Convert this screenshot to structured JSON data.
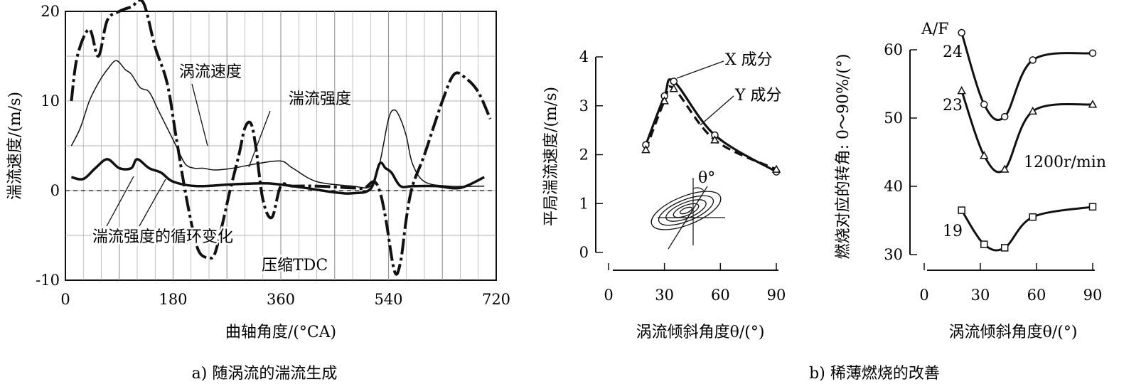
{
  "chart_data": [
    {
      "type": "line",
      "xlabel": "曲轴角度/(°CA)",
      "ylabel": "湍流速度/(m/s)",
      "caption": "a) 随涡流的湍流生成",
      "xlim": [
        0,
        720
      ],
      "ylim": [
        -10,
        20
      ],
      "xticks": [
        "0",
        "180",
        "360",
        "540",
        "720"
      ],
      "yticks": [
        "20",
        "10",
        "0",
        "-10"
      ],
      "grid": true,
      "annotations": [
        "涡流速度",
        "湍流强度",
        "湍流强度的循环变化",
        "压缩TDC"
      ],
      "series": [
        {
          "name": "涡流速度",
          "style": "dash-dot-thick",
          "x": [
            10,
            20,
            40,
            55,
            70,
            90,
            110,
            130,
            150,
            170,
            185,
            200,
            215,
            225,
            240,
            250,
            265,
            275,
            290,
            300,
            310,
            318,
            330,
            345,
            360,
            380,
            420,
            480,
            500,
            515,
            525,
            535,
            550,
            560,
            570,
            580,
            600,
            630,
            650,
            670,
            690,
            710
          ],
          "y": [
            10,
            15,
            18,
            15,
            19,
            20,
            20.5,
            21,
            16,
            12,
            6,
            0,
            -5,
            -7,
            -7.5,
            -7,
            -3,
            0,
            4,
            7,
            7.5,
            5,
            -1,
            -3,
            0.5,
            0.5,
            0.5,
            0.3,
            0.3,
            1,
            0,
            -3,
            -9,
            -8,
            -3,
            0.5,
            4,
            10,
            13,
            12.5,
            11,
            8
          ]
        },
        {
          "name": "湍流强度",
          "style": "solid-thin",
          "x": [
            10,
            25,
            40,
            55,
            70,
            85,
            100,
            110,
            125,
            140,
            155,
            170,
            185,
            200,
            215,
            230,
            250,
            280,
            320,
            360,
            380,
            420,
            480,
            510,
            525,
            540,
            550,
            560,
            570,
            580,
            600,
            640,
            700
          ],
          "y": [
            5,
            7,
            10,
            12,
            13.5,
            14.5,
            13.5,
            13,
            11.5,
            11,
            9,
            7,
            5,
            3,
            2.5,
            2.5,
            2.3,
            2.5,
            3,
            3.3,
            2.5,
            1,
            0.5,
            0.5,
            3,
            8,
            9,
            8,
            6,
            3,
            1,
            0.5,
            0.5
          ]
        },
        {
          "name": "湍流强度的循环变化",
          "style": "solid-thick",
          "x": [
            10,
            30,
            50,
            70,
            90,
            110,
            120,
            140,
            160,
            180,
            220,
            280,
            340,
            400,
            450,
            480,
            510,
            525,
            535,
            545,
            560,
            580,
            620,
            660,
            700
          ],
          "y": [
            1.5,
            1.3,
            2.5,
            3.5,
            2.5,
            2.5,
            3.5,
            2.5,
            2,
            1,
            0.5,
            0.7,
            0.8,
            0.3,
            -0.2,
            -0.3,
            0.2,
            3,
            2.5,
            2,
            0.5,
            0.5,
            0.5,
            0.3,
            1.5
          ]
        }
      ]
    },
    {
      "type": "line",
      "xlabel": "涡流倾斜角度θ/(°)",
      "ylabel": "平局湍流速度/(m/s)",
      "xlim": [
        0,
        90
      ],
      "ylim": [
        0,
        4
      ],
      "xticks": [
        "0",
        "30",
        "60",
        "90"
      ],
      "yticks": [
        "4",
        "3",
        "2",
        "1",
        "0"
      ],
      "inset_label": "θ°",
      "series": [
        {
          "name": "X 成分",
          "style": "solid-thick",
          "marker": "circle",
          "x": [
            20,
            30,
            35,
            57,
            90
          ],
          "y": [
            2.2,
            3.2,
            3.5,
            2.4,
            1.65
          ]
        },
        {
          "name": "Y 成分",
          "style": "dashed-thick",
          "marker": "triangle",
          "x": [
            20,
            30,
            35,
            57,
            90
          ],
          "y": [
            2.1,
            3.1,
            3.35,
            2.3,
            1.7
          ]
        }
      ]
    },
    {
      "type": "line",
      "xlabel": "涡流倾斜角度θ/(°)",
      "ylabel": "燃烧对应的转角: 0～90%/(°)",
      "xlim": [
        0,
        90
      ],
      "ylim": [
        30,
        60
      ],
      "xticks": [
        "0",
        "30",
        "60",
        "90"
      ],
      "yticks": [
        "60",
        "50",
        "40",
        "30"
      ],
      "legend_title": "A/F",
      "annotations": [
        "1200r/min"
      ],
      "series": [
        {
          "name": "24",
          "marker": "circle",
          "x": [
            20,
            32,
            43,
            58,
            90
          ],
          "y": [
            62.5,
            52,
            50.2,
            58.5,
            59.5
          ]
        },
        {
          "name": "23",
          "marker": "triangle",
          "x": [
            20,
            32,
            43,
            58,
            90
          ],
          "y": [
            54,
            44.5,
            42.5,
            51,
            52
          ]
        },
        {
          "name": "19",
          "marker": "square",
          "x": [
            20,
            32,
            43,
            58,
            90
          ],
          "y": [
            36.5,
            31.5,
            31,
            35.5,
            37
          ]
        }
      ]
    }
  ],
  "captions": {
    "left": "a) 随涡流的湍流生成",
    "right": "b) 稀薄燃烧的改善"
  },
  "colors": {
    "ink": "#111111",
    "grid": "#9a9a9a",
    "background": "#ffffff"
  }
}
